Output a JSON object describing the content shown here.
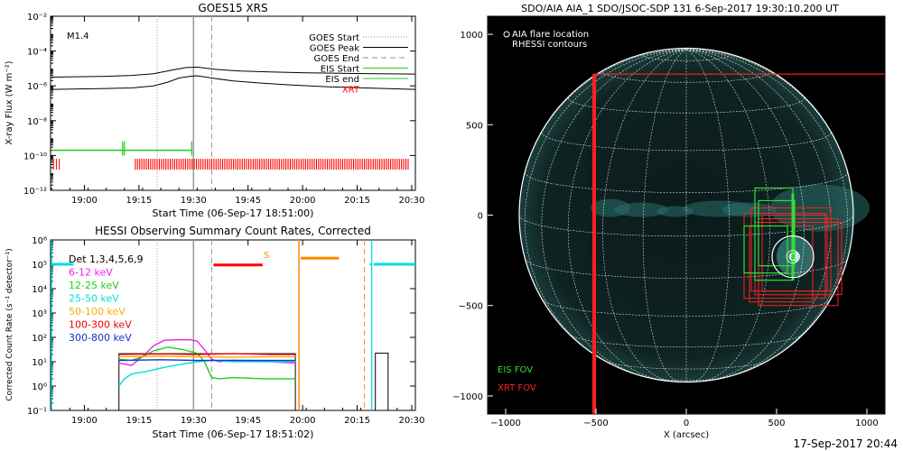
{
  "footer_timestamp": "17-Sep-2017 20:44",
  "colors": {
    "goes": "#000000",
    "eis": "#22cc22",
    "xrt": "#ff0000",
    "rhessi_window": "#ff8800",
    "det_bar": "#ff0000",
    "att_bar": "#00e5e5",
    "disk_grid": "#ffffff",
    "eis_fov": "#33dd33",
    "xrt_fov": "#ff2020"
  },
  "chart_data": [
    {
      "id": "goes",
      "type": "line",
      "title": "GOES15 XRS",
      "xlabel": "Start Time (06-Sep-17 18:51:00)",
      "ylabel": "X-ray Flux (W m⁻²)",
      "ylog": true,
      "ylim_exp": [
        -12,
        -2
      ],
      "xlim_minutes": [
        -0.3,
        100
      ],
      "xtick_labels": [
        "19:00",
        "19:15",
        "19:30",
        "19:45",
        "20:00",
        "20:15",
        "20:30"
      ],
      "xtick_minutes": [
        9,
        24,
        39,
        54,
        69,
        84,
        99
      ],
      "ytick_exps": [
        -12,
        -10,
        -8,
        -6,
        -4,
        -2
      ],
      "flare_class": "M1.4",
      "legend": [
        {
          "label": "GOES Start",
          "style": "dotted",
          "color": "#888888"
        },
        {
          "label": "GOES Peak",
          "style": "solid",
          "color": "#000000"
        },
        {
          "label": "GOES End",
          "style": "dashed",
          "color": "#888888"
        },
        {
          "label": "EIS Start",
          "style": "solid",
          "color": "#22cc22"
        },
        {
          "label": "EIS end",
          "style": "solid",
          "color": "#22cc22"
        },
        {
          "label": "XRT",
          "style": "none",
          "color": "#ff0000"
        }
      ],
      "markers": {
        "goes_start": 29,
        "goes_peak": 39,
        "goes_end": 44
      },
      "series": [
        {
          "channel": "long",
          "x": [
            0,
            15,
            22,
            28,
            33,
            37,
            40,
            45,
            52,
            60,
            70,
            80,
            90,
            100
          ],
          "log_y": [
            -5.5,
            -5.45,
            -5.4,
            -5.3,
            -5.1,
            -4.95,
            -4.92,
            -5.05,
            -5.15,
            -5.2,
            -5.25,
            -5.28,
            -5.3,
            -5.32
          ]
        },
        {
          "channel": "short",
          "x": [
            0,
            15,
            22,
            28,
            32,
            35,
            38,
            40,
            44,
            50,
            58,
            66,
            76,
            86,
            100
          ],
          "log_y": [
            -6.2,
            -6.15,
            -6.12,
            -6.0,
            -5.78,
            -5.55,
            -5.45,
            -5.42,
            -5.55,
            -5.72,
            -5.85,
            -5.95,
            -6.05,
            -6.12,
            -6.2
          ]
        }
      ],
      "eis": {
        "log_y": -9.7,
        "x_start": 0,
        "x_end": 38.5,
        "blip_x": [
          19.5,
          20,
          38.5
        ]
      },
      "xrt": {
        "log_y": -10.5,
        "left_x": [
          0.5,
          1.3,
          2.1
        ],
        "start": 23,
        "end": 98,
        "step": 0.6
      }
    },
    {
      "id": "hessi",
      "type": "line",
      "title": "HESSI Observing Summary Count Rates, Corrected",
      "xlabel": "Start Time (06-Sep-17 18:51:02)",
      "ylabel": "Corrected Count Rate (s⁻¹ detector⁻¹)",
      "ylog": true,
      "ylim_exp": [
        -1,
        6
      ],
      "xlim_minutes": [
        -0.3,
        100
      ],
      "xtick_labels": [
        "19:00",
        "19:15",
        "19:30",
        "19:45",
        "20:00",
        "20:15",
        "20:30"
      ],
      "xtick_minutes": [
        9,
        24,
        39,
        54,
        69,
        84,
        99
      ],
      "ytick_labels": [
        "10⁻¹",
        "10⁰",
        "10¹",
        "10²",
        "10³",
        "10⁴",
        "10⁵",
        "10⁶"
      ],
      "ytick_exps": [
        -1,
        0,
        1,
        2,
        3,
        4,
        5,
        6
      ],
      "legend": [
        {
          "label": "Det 1,3,4,5,6,9",
          "color": "#000000"
        },
        {
          "label": "6-12 keV",
          "color": "#ee22ee"
        },
        {
          "label": "12-25 keV",
          "color": "#22cc22"
        },
        {
          "label": "25-50 keV",
          "color": "#00dddd"
        },
        {
          "label": "50-100 keV",
          "color": "#ffaa00"
        },
        {
          "label": "100-300 keV",
          "color": "#ee0000"
        },
        {
          "label": "300-800 keV",
          "color": "#1133cc"
        }
      ],
      "saa_label": "S",
      "markers": {
        "goes_start": 29,
        "goes_peak": 39,
        "goes_end": 44
      },
      "data_window": {
        "start": 18.5,
        "end": 67
      },
      "data_window_2": {
        "start": 89,
        "end": 92.5
      },
      "orange_window": {
        "start": 68,
        "end": 85.5,
        "bar_x": [
          68.5,
          79
        ],
        "log_y": 5.25,
        "dashed_x": 86
      },
      "det_bar": {
        "x": [
          44.5,
          58
        ],
        "log_y": 4.97
      },
      "att_segments": [
        {
          "x": [
            0,
            6
          ],
          "log_y": 5.0
        },
        {
          "x": [
            87.5,
            88
          ],
          "log_y": 5.0
        },
        {
          "x": [
            88.5,
            100
          ],
          "log_y": 5.0
        }
      ],
      "series": [
        {
          "band": "6-12 keV",
          "x": [
            18.5,
            22,
            24,
            26,
            28,
            31,
            34,
            38,
            40,
            42,
            44,
            46,
            50,
            60,
            67
          ],
          "log_y": [
            0.95,
            0.85,
            1.1,
            1.35,
            1.65,
            1.88,
            1.9,
            1.9,
            1.85,
            1.5,
            1.1,
            1.0,
            1.05,
            1.0,
            0.95
          ]
        },
        {
          "band": "12-25 keV",
          "x": [
            18.5,
            22,
            25,
            28,
            32,
            36,
            40,
            42,
            44,
            46,
            50,
            58,
            67
          ],
          "log_y": [
            1.1,
            1.05,
            1.2,
            1.45,
            1.6,
            1.5,
            1.35,
            1.0,
            0.35,
            0.3,
            0.35,
            0.3,
            0.3
          ]
        },
        {
          "band": "25-50 keV",
          "x": [
            18.5,
            20,
            22,
            24,
            26,
            29,
            32,
            36,
            40,
            44,
            50,
            60,
            67
          ],
          "log_y": [
            0.0,
            0.3,
            0.5,
            0.55,
            0.6,
            0.7,
            0.8,
            0.9,
            1.0,
            1.05,
            1.0,
            1.0,
            1.0
          ]
        },
        {
          "band": "50-100 keV",
          "x": [
            18.5,
            30,
            40,
            50,
            60,
            67
          ],
          "log_y": [
            1.2,
            1.22,
            1.2,
            1.18,
            1.2,
            1.2
          ]
        },
        {
          "band": "100-300 keV",
          "x": [
            18.5,
            30,
            40,
            50,
            60,
            67
          ],
          "log_y": [
            1.3,
            1.32,
            1.3,
            1.33,
            1.3,
            1.3
          ]
        },
        {
          "band": "300-800 keV",
          "x": [
            18.5,
            30,
            40,
            50,
            60,
            67
          ],
          "log_y": [
            1.05,
            1.08,
            1.05,
            1.06,
            1.05,
            1.05
          ]
        }
      ]
    },
    {
      "id": "aia",
      "type": "scatter",
      "title": "SDO/AIA AIA_1 SDO/JSOC-SDP 131   6-Sep-2017 19:30:10.200 UT",
      "xlabel": "X (arcsec)",
      "xlim": [
        -1100,
        1100
      ],
      "ylim": [
        -1100,
        1100
      ],
      "xtick_labels": [
        "−1000",
        "−500",
        "0",
        "500",
        "1000"
      ],
      "xtick_values": [
        -1000,
        -500,
        0,
        500,
        1000
      ],
      "ytick_labels": [
        "1000",
        "500",
        "0",
        "−500",
        "−1000"
      ],
      "ytick_values": [
        1000,
        500,
        0,
        -500,
        -1000
      ],
      "legend": [
        {
          "label": "AIA flare location",
          "marker": "circle",
          "color": "#ffffff"
        },
        {
          "label": "RHESSI contours",
          "marker": "none",
          "color": "#ffffff"
        }
      ],
      "solar_radius": 925,
      "flare_location": [
        590,
        -230
      ],
      "labels": {
        "eis": "EIS FOV",
        "xrt": "XRT FOV"
      },
      "xrt_large_fov": {
        "x": [
          -510,
          1100
        ],
        "y": [
          -1100,
          780
        ]
      },
      "eis_fovs": [
        {
          "x": [
            380,
            590
          ],
          "y": [
            -360,
            150
          ]
        },
        {
          "x": [
            320,
            560
          ],
          "y": [
            -320,
            -60
          ]
        },
        {
          "x": [
            400,
            600
          ],
          "y": [
            -280,
            80
          ]
        }
      ],
      "xrt_fovs": [
        {
          "x": [
            320,
            770
          ],
          "y": [
            -460,
            10
          ]
        },
        {
          "x": [
            360,
            800
          ],
          "y": [
            -420,
            40
          ]
        },
        {
          "x": [
            400,
            840
          ],
          "y": [
            -500,
            -20
          ]
        },
        {
          "x": [
            420,
            780
          ],
          "y": [
            -420,
            0
          ]
        },
        {
          "x": [
            380,
            860
          ],
          "y": [
            -440,
            -40
          ]
        },
        {
          "x": [
            350,
            700
          ],
          "y": [
            -480,
            -60
          ]
        }
      ]
    }
  ]
}
